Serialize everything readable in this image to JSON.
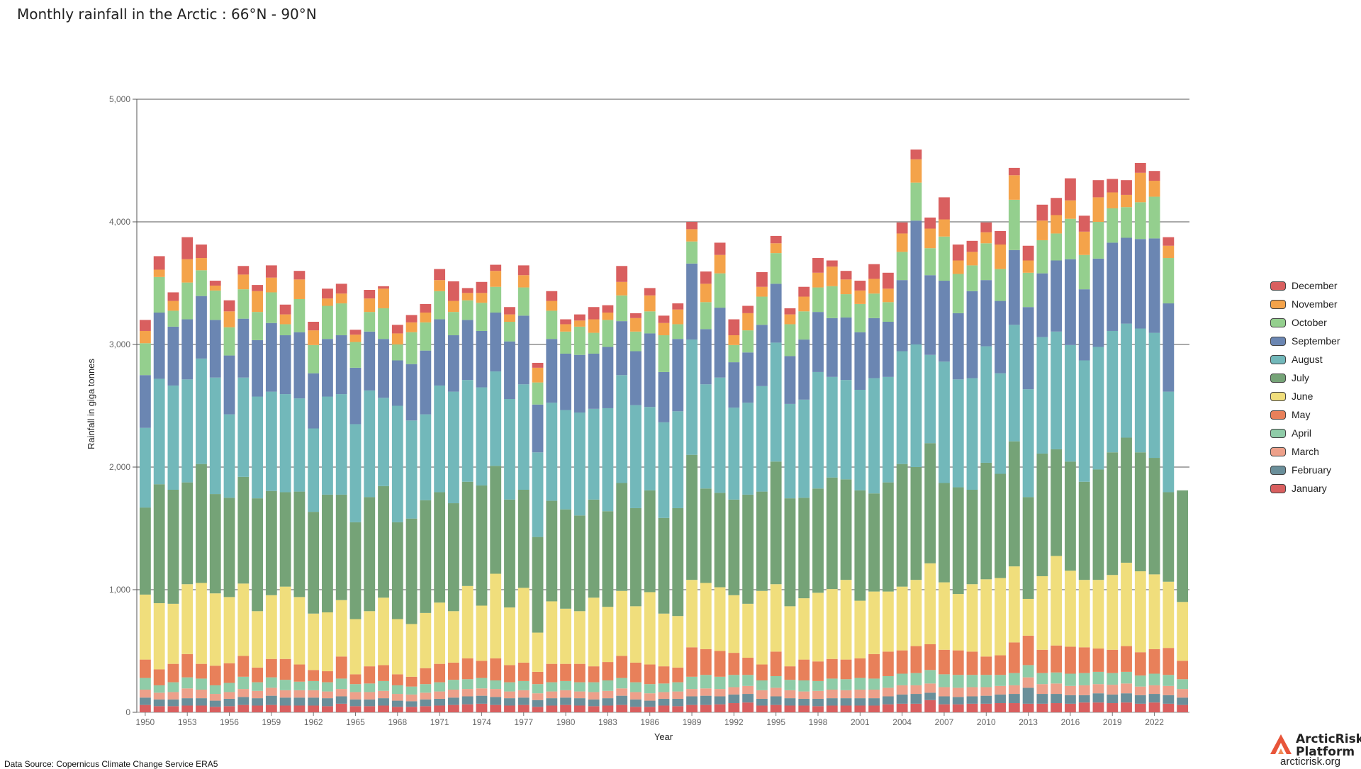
{
  "page": {
    "title": "Monthly rainfall in the Arctic : 66°N - 90°N",
    "source": "Data Source: Copernicus Climate Change Service ERA5",
    "brand_line1": "ArcticRisk",
    "brand_line2": "Platform",
    "brand_url": "arcticrisk.org"
  },
  "chart_data": {
    "type": "bar",
    "stacked": true,
    "title": "Monthly rainfall in the Arctic : 66°N - 90°N",
    "xlabel": "Year",
    "ylabel": "Rainfall in giga tonnes",
    "ylim": [
      0,
      5000
    ],
    "yticks": [
      0,
      1000,
      2000,
      3000,
      4000,
      5000
    ],
    "ytick_labels": [
      "0",
      "1,000",
      "2,000",
      "3,000",
      "4,000",
      "5,000"
    ],
    "xtick_labels": [
      "1950",
      "1953",
      "1956",
      "1959",
      "1962",
      "1965",
      "1968",
      "1971",
      "1974",
      "1977",
      "1980",
      "1983",
      "1986",
      "1989",
      "1992",
      "1995",
      "1998",
      "2001",
      "2004",
      "2007",
      "2010",
      "2013",
      "2016",
      "2019",
      "2022"
    ],
    "grid": true,
    "legend_position": "right",
    "categories": [
      "1950",
      "1951",
      "1952",
      "1953",
      "1954",
      "1955",
      "1956",
      "1957",
      "1958",
      "1959",
      "1960",
      "1961",
      "1962",
      "1963",
      "1964",
      "1965",
      "1966",
      "1967",
      "1968",
      "1969",
      "1970",
      "1971",
      "1972",
      "1973",
      "1974",
      "1975",
      "1976",
      "1977",
      "1978",
      "1979",
      "1980",
      "1981",
      "1982",
      "1983",
      "1984",
      "1985",
      "1986",
      "1987",
      "1988",
      "1989",
      "1990",
      "1991",
      "1992",
      "1993",
      "1994",
      "1995",
      "1996",
      "1997",
      "1998",
      "1999",
      "2000",
      "2001",
      "2002",
      "2003",
      "2004",
      "2005",
      "2006",
      "2007",
      "2008",
      "2009",
      "2010",
      "2011",
      "2012",
      "2013",
      "2014",
      "2015",
      "2016",
      "2017",
      "2018",
      "2019",
      "2020",
      "2021",
      "2022",
      "2023",
      "2024"
    ],
    "series": [
      {
        "name": "January",
        "color": "#d95f5f",
        "values": [
          60,
          50,
          50,
          55,
          55,
          45,
          50,
          60,
          55,
          60,
          55,
          55,
          55,
          50,
          70,
          50,
          50,
          55,
          45,
          45,
          50,
          55,
          60,
          65,
          70,
          60,
          55,
          60,
          45,
          55,
          60,
          55,
          50,
          55,
          60,
          45,
          45,
          55,
          50,
          60,
          60,
          65,
          75,
          80,
          55,
          60,
          55,
          55,
          50,
          55,
          55,
          55,
          55,
          65,
          70,
          70,
          100,
          65,
          65,
          70,
          70,
          75,
          75,
          70,
          70,
          75,
          70,
          80,
          80,
          75,
          80,
          70,
          80,
          70,
          60
        ]
      },
      {
        "name": "February",
        "color": "#6a8f9a",
        "values": [
          60,
          55,
          55,
          60,
          60,
          50,
          60,
          65,
          60,
          75,
          65,
          65,
          65,
          65,
          60,
          55,
          55,
          60,
          50,
          45,
          55,
          55,
          60,
          65,
          65,
          65,
          60,
          60,
          55,
          60,
          60,
          60,
          55,
          60,
          75,
          60,
          50,
          55,
          60,
          70,
          75,
          65,
          70,
          70,
          55,
          70,
          60,
          55,
          60,
          60,
          60,
          60,
          60,
          65,
          75,
          80,
          60,
          65,
          60,
          60,
          65,
          70,
          75,
          130,
          80,
          75,
          70,
          60,
          75,
          70,
          75,
          70,
          70,
          70,
          60
        ]
      },
      {
        "name": "March",
        "color": "#eda08a",
        "values": [
          65,
          55,
          60,
          80,
          70,
          55,
          55,
          65,
          60,
          65,
          60,
          60,
          60,
          55,
          60,
          60,
          60,
          60,
          55,
          55,
          55,
          60,
          65,
          60,
          60,
          65,
          55,
          60,
          55,
          55,
          60,
          55,
          60,
          60,
          60,
          60,
          60,
          55,
          60,
          60,
          60,
          60,
          60,
          65,
          70,
          70,
          65,
          60,
          65,
          70,
          65,
          70,
          70,
          70,
          75,
          70,
          75,
          75,
          75,
          75,
          70,
          70,
          70,
          85,
          80,
          85,
          75,
          80,
          75,
          80,
          80,
          70,
          70,
          75,
          70
        ]
      },
      {
        "name": "April",
        "color": "#8fcca8",
        "values": [
          95,
          60,
          80,
          90,
          90,
          70,
          75,
          100,
          70,
          85,
          85,
          70,
          75,
          75,
          85,
          65,
          70,
          80,
          70,
          65,
          70,
          75,
          80,
          80,
          85,
          70,
          75,
          75,
          75,
          75,
          75,
          75,
          80,
          85,
          85,
          80,
          75,
          70,
          75,
          100,
          110,
          100,
          100,
          90,
          80,
          95,
          85,
          90,
          80,
          90,
          90,
          95,
          90,
          95,
          95,
          100,
          110,
          105,
          105,
          100,
          100,
          90,
          100,
          100,
          90,
          90,
          100,
          100,
          100,
          95,
          95,
          90,
          95,
          90,
          80
        ]
      },
      {
        "name": "May",
        "color": "#e8805a",
        "values": [
          150,
          130,
          150,
          190,
          120,
          160,
          160,
          170,
          120,
          150,
          170,
          140,
          90,
          90,
          180,
          80,
          140,
          130,
          90,
          80,
          130,
          150,
          140,
          170,
          140,
          180,
          140,
          150,
          100,
          150,
          140,
          150,
          130,
          150,
          180,
          160,
          160,
          140,
          120,
          240,
          210,
          210,
          180,
          140,
          130,
          200,
          110,
          170,
          160,
          160,
          160,
          160,
          200,
          200,
          190,
          220,
          210,
          200,
          200,
          190,
          150,
          160,
          250,
          240,
          190,
          220,
          220,
          210,
          190,
          190,
          210,
          190,
          200,
          220,
          150
        ]
      },
      {
        "name": "June",
        "color": "#f0de7c",
        "values": [
          530,
          540,
          490,
          570,
          660,
          590,
          540,
          590,
          460,
          520,
          590,
          550,
          460,
          480,
          460,
          450,
          450,
          550,
          450,
          430,
          450,
          500,
          420,
          590,
          450,
          690,
          470,
          610,
          320,
          510,
          450,
          430,
          560,
          450,
          530,
          460,
          590,
          430,
          420,
          550,
          540,
          520,
          470,
          440,
          600,
          550,
          490,
          500,
          560,
          570,
          650,
          470,
          510,
          490,
          520,
          540,
          660,
          550,
          460,
          550,
          630,
          630,
          620,
          300,
          600,
          730,
          620,
          550,
          560,
          610,
          680,
          660,
          610,
          540,
          480
        ]
      },
      {
        "name": "July",
        "color": "#75a377",
        "values": [
          710,
          970,
          930,
          830,
          970,
          810,
          810,
          870,
          920,
          850,
          770,
          860,
          830,
          960,
          860,
          790,
          930,
          910,
          790,
          860,
          920,
          900,
          880,
          850,
          980,
          880,
          880,
          800,
          780,
          820,
          810,
          780,
          800,
          780,
          880,
          800,
          830,
          780,
          880,
          1020,
          770,
          770,
          780,
          890,
          810,
          1000,
          880,
          820,
          850,
          910,
          820,
          900,
          800,
          890,
          1000,
          920,
          980,
          810,
          870,
          770,
          950,
          850,
          1020,
          830,
          1000,
          870,
          890,
          800,
          900,
          1000,
          1020,
          970,
          950,
          730,
          910
        ]
      },
      {
        "name": "August",
        "color": "#72b8ba",
        "values": [
          650,
          860,
          850,
          840,
          860,
          950,
          680,
          810,
          830,
          810,
          800,
          760,
          680,
          800,
          820,
          800,
          870,
          720,
          950,
          800,
          700,
          870,
          910,
          830,
          800,
          770,
          820,
          860,
          690,
          800,
          810,
          840,
          740,
          840,
          880,
          840,
          680,
          780,
          790,
          940,
          850,
          940,
          750,
          750,
          860,
          970,
          770,
          800,
          950,
          820,
          810,
          820,
          940,
          860,
          920,
          1000,
          720,
          990,
          880,
          910,
          950,
          820,
          950,
          880,
          950,
          960,
          950,
          990,
          1000,
          990,
          930,
          1010,
          1020,
          820,
          0
        ]
      },
      {
        "name": "September",
        "color": "#6b86b2",
        "values": [
          430,
          540,
          480,
          490,
          510,
          470,
          480,
          480,
          460,
          560,
          480,
          540,
          450,
          470,
          480,
          460,
          480,
          480,
          370,
          460,
          520,
          540,
          460,
          490,
          460,
          480,
          470,
          560,
          390,
          520,
          460,
          470,
          450,
          500,
          440,
          440,
          600,
          410,
          590,
          620,
          450,
          570,
          370,
          410,
          500,
          480,
          390,
          490,
          490,
          480,
          510,
          470,
          490,
          450,
          580,
          1010,
          650,
          660,
          540,
          710,
          540,
          590,
          610,
          670,
          520,
          580,
          700,
          580,
          720,
          720,
          700,
          730,
          770,
          720,
          0
        ]
      },
      {
        "name": "October",
        "color": "#94cf8e",
        "values": [
          260,
          290,
          130,
          300,
          210,
          240,
          230,
          240,
          230,
          250,
          90,
          270,
          230,
          270,
          260,
          210,
          160,
          250,
          130,
          260,
          230,
          230,
          190,
          160,
          230,
          210,
          160,
          230,
          180,
          230,
          180,
          230,
          170,
          220,
          210,
          160,
          180,
          300,
          120,
          180,
          220,
          280,
          140,
          180,
          230,
          250,
          260,
          230,
          200,
          260,
          190,
          230,
          200,
          160,
          230,
          310,
          220,
          360,
          320,
          210,
          300,
          260,
          410,
          280,
          270,
          220,
          330,
          280,
          300,
          280,
          250,
          300,
          340,
          370,
          0
        ]
      },
      {
        "name": "November",
        "color": "#f4a34a",
        "values": [
          100,
          60,
          80,
          190,
          100,
          40,
          130,
          120,
          170,
          120,
          80,
          160,
          120,
          60,
          80,
          60,
          110,
          160,
          90,
          80,
          80,
          90,
          90,
          60,
          80,
          130,
          60,
          100,
          120,
          80,
          60,
          50,
          110,
          60,
          110,
          110,
          130,
          100,
          120,
          100,
          150,
          150,
          80,
          140,
          80,
          80,
          80,
          120,
          120,
          160,
          120,
          110,
          120,
          110,
          150,
          190,
          160,
          140,
          110,
          110,
          90,
          200,
          200,
          100,
          160,
          150,
          150,
          190,
          200,
          130,
          100,
          240,
          130,
          100,
          0
        ]
      },
      {
        "name": "December",
        "color": "#d95f5f",
        "values": [
          90,
          110,
          70,
          180,
          110,
          40,
          90,
          70,
          50,
          100,
          80,
          70,
          70,
          80,
          80,
          40,
          70,
          20,
          70,
          60,
          70,
          90,
          160,
          40,
          90,
          50,
          60,
          80,
          40,
          80,
          40,
          50,
          100,
          60,
          130,
          40,
          60,
          60,
          50,
          60,
          100,
          100,
          130,
          60,
          120,
          60,
          50,
          80,
          120,
          50,
          70,
          80,
          120,
          130,
          90,
          80,
          90,
          180,
          130,
          90,
          80,
          110,
          60,
          120,
          130,
          140,
          180,
          130,
          140,
          110,
          120,
          80,
          80,
          70,
          0
        ]
      }
    ]
  }
}
